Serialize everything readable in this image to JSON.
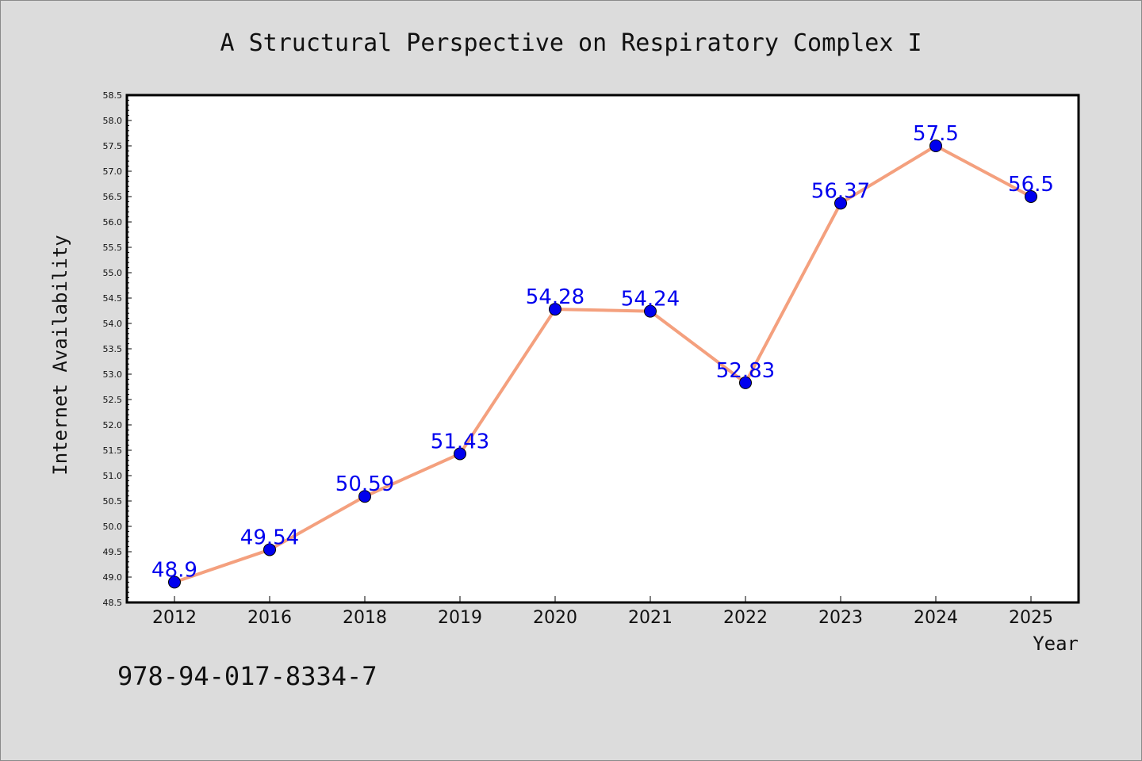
{
  "footer_text": "978-94-017-8334-7",
  "chart_data": {
    "type": "line",
    "title": "A Structural Perspective on Respiratory Complex I",
    "xlabel": "Year",
    "ylabel": "Internet Availability",
    "categories": [
      "2012",
      "2016",
      "2018",
      "2019",
      "2020",
      "2021",
      "2022",
      "2023",
      "2024",
      "2025"
    ],
    "series": [
      {
        "values": [
          48.9,
          49.54,
          50.59,
          51.43,
          54.28,
          54.24,
          52.83,
          56.37,
          57.5,
          56.5
        ],
        "data_labels": [
          "48.9",
          "49.54",
          "50.59",
          "51.43",
          "54.28",
          "54.24",
          "52.83",
          "56.37",
          "57.5",
          "56.5"
        ],
        "line_color": "#f4a07e",
        "marker_color": "#0000ee",
        "label_color": "#0000ee"
      }
    ],
    "ylim": [
      48.5,
      58.5
    ],
    "ytick_step": 0.5,
    "ytick_labels": [
      "48.5",
      "49.0",
      "49.5",
      "50.0",
      "50.5",
      "51.0",
      "51.5",
      "52.0",
      "52.5",
      "53.0",
      "53.5",
      "54.0",
      "54.5",
      "55.0",
      "55.5",
      "56.0",
      "56.5",
      "57.0",
      "57.5",
      "58.0",
      "58.5"
    ],
    "grid": false,
    "legend": "none",
    "background": "#dcdcdc",
    "plot_background": "#ffffff"
  }
}
